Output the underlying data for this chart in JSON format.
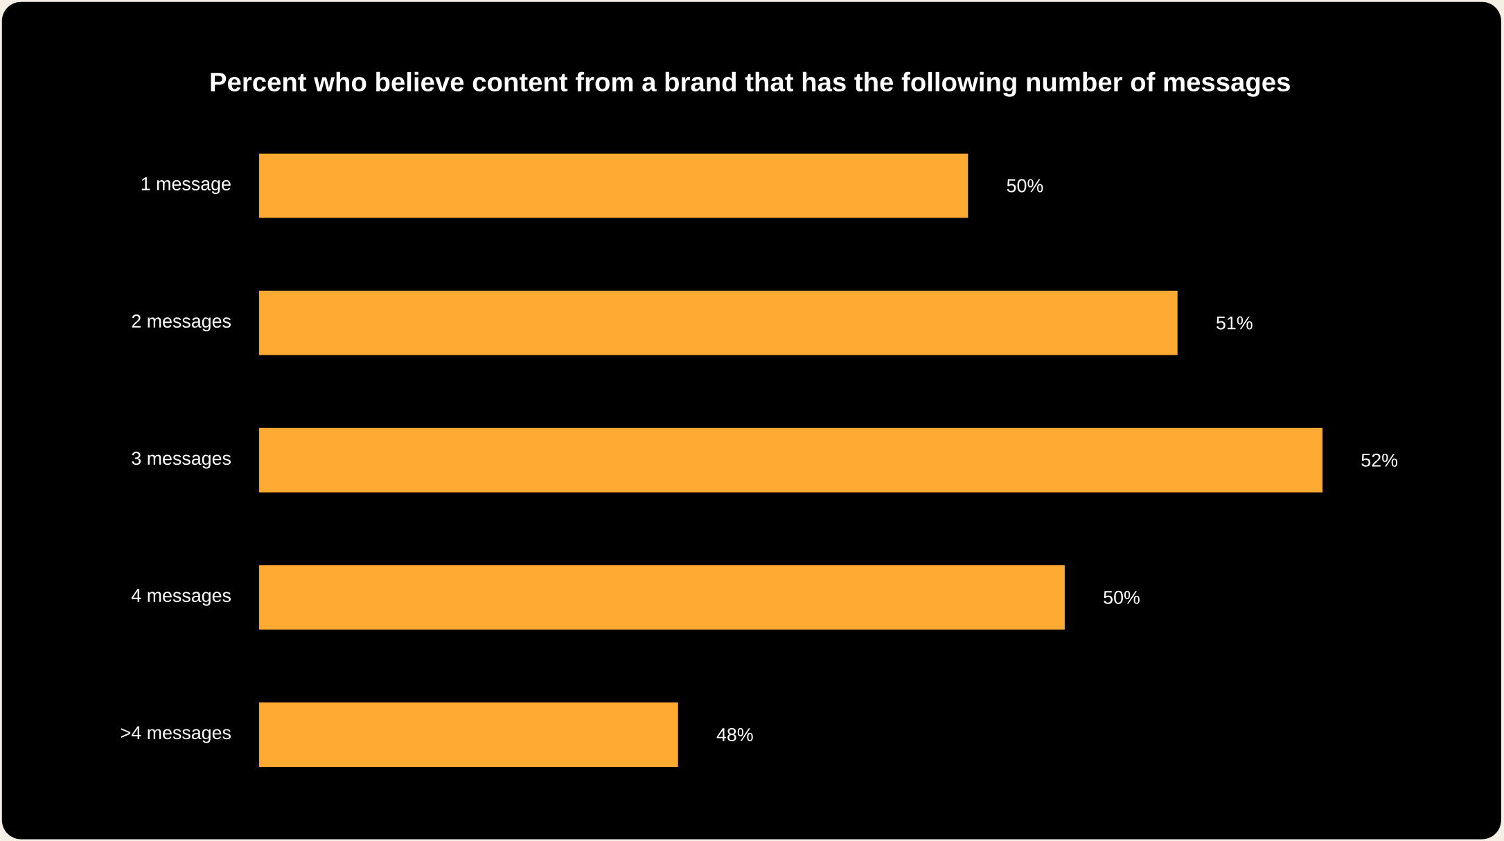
{
  "chart_data": {
    "type": "bar",
    "orientation": "horizontal",
    "title": "Percent who believe content from a brand that has the following number of messages",
    "categories": [
      "1 message",
      "2 messages",
      "3 messages",
      "4 messages",
      ">4 messages"
    ],
    "values": [
      49.8,
      51.1,
      52.0,
      50.4,
      48.0
    ],
    "value_labels": [
      "50%",
      "51%",
      "52%",
      "50%",
      "48%"
    ],
    "color": "#ffaa33",
    "xlim": [
      45.4,
      52.0
    ],
    "tick_labels": "y"
  }
}
